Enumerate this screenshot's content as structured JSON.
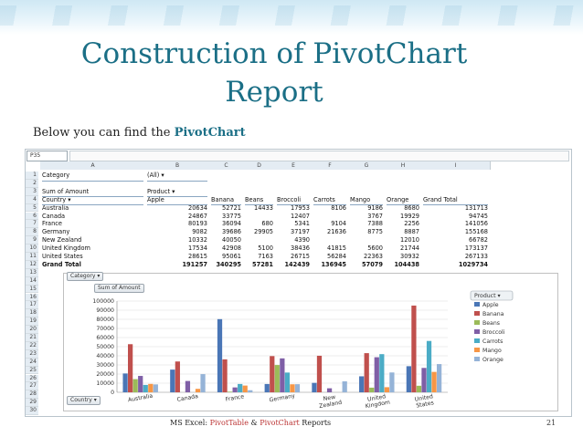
{
  "slide": {
    "title": "Construction of PivotChart Report",
    "subtitle_prefix": "Below you can find the ",
    "subtitle_bold": "PivotChart"
  },
  "sheet": {
    "name_box": "P35",
    "columns": [
      "A",
      "B",
      "C",
      "D",
      "E",
      "F",
      "G",
      "H",
      "I"
    ],
    "row_numbers": [
      "1",
      "2",
      "3",
      "4",
      "5",
      "6",
      "7",
      "8",
      "9",
      "10",
      "11",
      "12",
      "13",
      "14",
      "15",
      "16",
      "17",
      "18",
      "19",
      "20",
      "21",
      "22",
      "23",
      "24",
      "25",
      "26",
      "27",
      "28",
      "29",
      "30"
    ],
    "filter_label": "Category",
    "filter_value": "(All)",
    "sum_label": "Sum of Amount",
    "product_label": "Product",
    "country_label": "Country",
    "products": [
      "Apple",
      "Banana",
      "Beans",
      "Broccoli",
      "Carrots",
      "Mango",
      "Orange"
    ],
    "grand_total_label": "Grand Total",
    "rows": [
      {
        "country": "Australia",
        "values": [
          "20634",
          "52721",
          "14433",
          "",
          "17953",
          "8106",
          "9186",
          "8680",
          "131713"
        ]
      },
      {
        "country": "Canada",
        "values": [
          "24867",
          "33775",
          "",
          "",
          "12407",
          "",
          "3767",
          "19929",
          "94745"
        ]
      },
      {
        "country": "France",
        "values": [
          "80193",
          "36094",
          "680",
          "",
          "5341",
          "9104",
          "7388",
          "2256",
          "141056"
        ]
      },
      {
        "country": "Germany",
        "values": [
          "9082",
          "39686",
          "29905",
          "",
          "37197",
          "21636",
          "8775",
          "8887",
          "155168"
        ]
      },
      {
        "country": "New Zealand",
        "values": [
          "10332",
          "40050",
          "",
          "",
          "4390",
          "",
          "",
          "12010",
          "66782"
        ]
      },
      {
        "country": "United Kingdom",
        "values": [
          "17534",
          "42908",
          "5100",
          "",
          "38436",
          "41815",
          "5600",
          "21744",
          "173137"
        ]
      },
      {
        "country": "United States",
        "values": [
          "28615",
          "95061",
          "7163",
          "",
          "26715",
          "56284",
          "22363",
          "30932",
          "267133"
        ]
      }
    ],
    "grand_total_row": [
      "191257",
      "340295",
      "57281",
      "",
      "142439",
      "136945",
      "57079",
      "104438",
      "1029734"
    ]
  },
  "chart_fields": {
    "category_button": "Category",
    "sum_button": "Sum of Amount",
    "country_button": "Country",
    "legend_title": "Product"
  },
  "chart_data": {
    "type": "bar",
    "categories": [
      "Australia",
      "Canada",
      "France",
      "Germany",
      "New Zealand",
      "United Kingdom",
      "United States"
    ],
    "ylim": [
      0,
      100000
    ],
    "yticks": [
      "0",
      "10000",
      "20000",
      "30000",
      "40000",
      "50000",
      "60000",
      "70000",
      "80000",
      "90000",
      "100000"
    ],
    "series": [
      {
        "name": "Apple",
        "color": "#4a76b6",
        "values": [
          20634,
          24867,
          80193,
          9082,
          10332,
          17534,
          28615
        ]
      },
      {
        "name": "Banana",
        "color": "#c0504d",
        "values": [
          52721,
          33775,
          36094,
          39686,
          40050,
          42908,
          95061
        ]
      },
      {
        "name": "Beans",
        "color": "#9bbb59",
        "values": [
          14433,
          0,
          680,
          29905,
          0,
          5100,
          7163
        ]
      },
      {
        "name": "Broccoli",
        "color": "#7f5fa6",
        "values": [
          17953,
          12407,
          5341,
          37197,
          4390,
          38436,
          26715
        ]
      },
      {
        "name": "Carrots",
        "color": "#4bacc6",
        "values": [
          8106,
          0,
          9104,
          21636,
          0,
          41815,
          56284
        ]
      },
      {
        "name": "Mango",
        "color": "#f79646",
        "values": [
          9186,
          3767,
          7388,
          8775,
          0,
          5600,
          22363
        ]
      },
      {
        "name": "Orange",
        "color": "#95b3d7",
        "values": [
          8680,
          19929,
          2256,
          8887,
          12010,
          21744,
          30932
        ]
      }
    ]
  },
  "footer": {
    "prefix": "MS Excel: ",
    "pivot_table": "PivotTable",
    "amp": " & ",
    "pivot_chart": "PivotChart",
    "suffix": " Reports",
    "page": "21"
  }
}
